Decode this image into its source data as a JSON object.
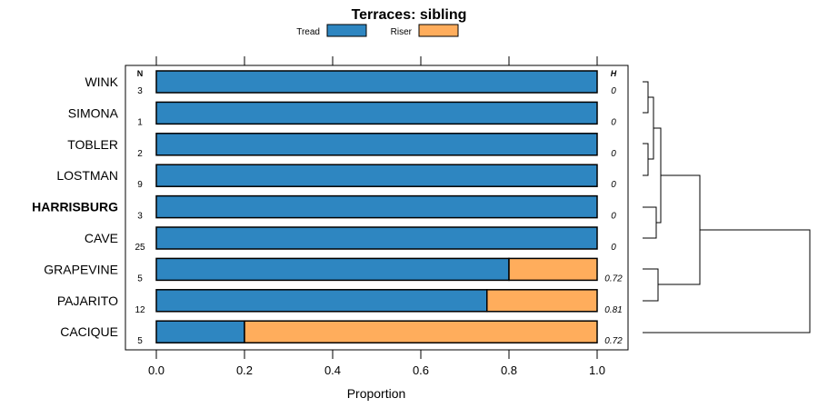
{
  "chart_data": {
    "type": "bar",
    "stacked": true,
    "orientation": "horizontal",
    "title": "Terraces: sibling",
    "xlabel": "Proportion",
    "ylabel": "",
    "xlim": [
      0,
      1
    ],
    "xticks": [
      "0.0",
      "0.2",
      "0.4",
      "0.6",
      "0.8",
      "1.0"
    ],
    "legend": {
      "placement": "top",
      "entries": [
        "Tread",
        "Riser"
      ]
    },
    "colors": {
      "Tread": "#2e86c1",
      "Riser": "#ffad5c"
    },
    "n_header": "N",
    "h_header": "H",
    "categories": [
      "WINK",
      "SIMONA",
      "TOBLER",
      "LOSTMAN",
      "HARRISBURG",
      "CAVE",
      "GRAPEVINE",
      "PAJARITO",
      "CACIQUE"
    ],
    "highlighted_category": "HARRISBURG",
    "n": [
      "3",
      "1",
      "2",
      "9",
      "3",
      "25",
      "5",
      "12",
      "5"
    ],
    "h": [
      "0",
      "0",
      "0",
      "0",
      "0",
      "0",
      "0.72",
      "0.81",
      "0.72"
    ],
    "series": [
      {
        "name": "Tread",
        "values": [
          1,
          1,
          1,
          1,
          1,
          1,
          0.8,
          0.75,
          0.2
        ]
      },
      {
        "name": "Riser",
        "values": [
          0,
          0,
          0,
          0,
          0,
          0,
          0.2,
          0.25,
          0.8
        ]
      }
    ],
    "dendrogram": "clustering of the 9 categories shown to the right of the bars"
  }
}
